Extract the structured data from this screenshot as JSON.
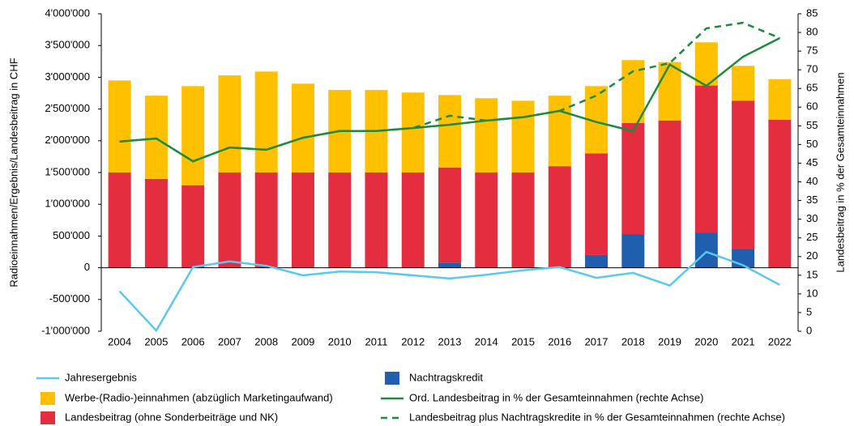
{
  "chart_data": {
    "type": "bar",
    "stacked": true,
    "categories": [
      "2004",
      "2005",
      "2006",
      "2007",
      "2008",
      "2009",
      "2010",
      "2011",
      "2012",
      "2013",
      "2014",
      "2015",
      "2016",
      "2017",
      "2018",
      "2019",
      "2020",
      "2021",
      "2022"
    ],
    "ylabel": "Radioeinnahmen/Ergebnis/Landesbeitrag in CHF",
    "y2label": "Landesbeitrag in % der Gesamteinnahmen",
    "ylim": [
      -1000000,
      4000000
    ],
    "yticks": [
      {
        "value": -1000000,
        "label": "-1'000'000"
      },
      {
        "value": -500000,
        "label": "-500'000"
      },
      0,
      {
        "value": 500000,
        "label": "500'000"
      },
      {
        "value": 1000000,
        "label": "1'000'000"
      },
      {
        "value": 1500000,
        "label": "1'500'000"
      },
      {
        "value": 2000000,
        "label": "2'000'000"
      },
      {
        "value": 2500000,
        "label": "2'500'000"
      },
      {
        "value": 3000000,
        "label": "3'000'000"
      },
      {
        "value": 3500000,
        "label": "3'500'000"
      },
      {
        "value": 4000000,
        "label": "4'000'000"
      }
    ],
    "y2lim": [
      0,
      85
    ],
    "y2ticks": [
      0,
      5,
      10,
      15,
      20,
      25,
      30,
      35,
      40,
      45,
      50,
      55,
      60,
      65,
      70,
      75,
      80,
      85
    ],
    "series": [
      {
        "name": "Nachtragskredit",
        "kind": "bar",
        "color": "#1f5fad",
        "values": [
          0,
          0,
          0,
          0,
          0,
          0,
          0,
          0,
          0,
          80000,
          0,
          0,
          0,
          200000,
          530000,
          0,
          550000,
          300000,
          0
        ]
      },
      {
        "name": "Landesbeitrag (ohne Sonderbeiträge und NK)",
        "kind": "bar",
        "color": "#e42d3f",
        "values": [
          1500000,
          1400000,
          1300000,
          1500000,
          1500000,
          1500000,
          1500000,
          1500000,
          1500000,
          1500000,
          1500000,
          1500000,
          1600000,
          1600000,
          1750000,
          2320000,
          2320000,
          2330000,
          2330000
        ]
      },
      {
        "name": "Werbe-(Radio-)einnahmen (abzüglich Marketingaufwand)",
        "kind": "bar",
        "color": "#ffc000",
        "values": [
          1450000,
          1310000,
          1560000,
          1530000,
          1590000,
          1400000,
          1300000,
          1300000,
          1260000,
          1140000,
          1170000,
          1130000,
          1110000,
          1060000,
          990000,
          920000,
          680000,
          550000,
          640000
        ]
      },
      {
        "name": "Jahresergebnis",
        "kind": "line",
        "color": "#5bc8f0",
        "dash": "solid",
        "values": [
          -370000,
          -990000,
          10000,
          100000,
          30000,
          -120000,
          -60000,
          -70000,
          -120000,
          -170000,
          -110000,
          -40000,
          10000,
          -160000,
          -80000,
          -280000,
          250000,
          40000,
          -270000
        ]
      },
      {
        "name": "Ord. Landesbeitrag in % der Gesamteinnahmen (rechte Achse)",
        "kind": "line",
        "color": "#1e8a3c",
        "dash": "solid",
        "axis": "y2",
        "values": [
          50.8,
          51.6,
          45.5,
          49.2,
          48.6,
          51.8,
          53.6,
          53.6,
          54.4,
          55.3,
          56.4,
          57.3,
          59.0,
          56.0,
          53.6,
          71.4,
          65.7,
          73.5,
          78.5
        ]
      },
      {
        "name": "Landesbeitrag plus Nachtragskredite in % der Gesamteinnahmen (rechte Achse)",
        "kind": "line",
        "color": "#1e8a3c",
        "dash": "dashed",
        "axis": "y2",
        "values": [
          50.8,
          51.6,
          45.5,
          49.2,
          48.6,
          51.8,
          53.6,
          53.6,
          54.4,
          57.7,
          56.4,
          57.3,
          59.0,
          63.1,
          69.6,
          71.8,
          81.1,
          82.6,
          78.5
        ]
      }
    ]
  }
}
